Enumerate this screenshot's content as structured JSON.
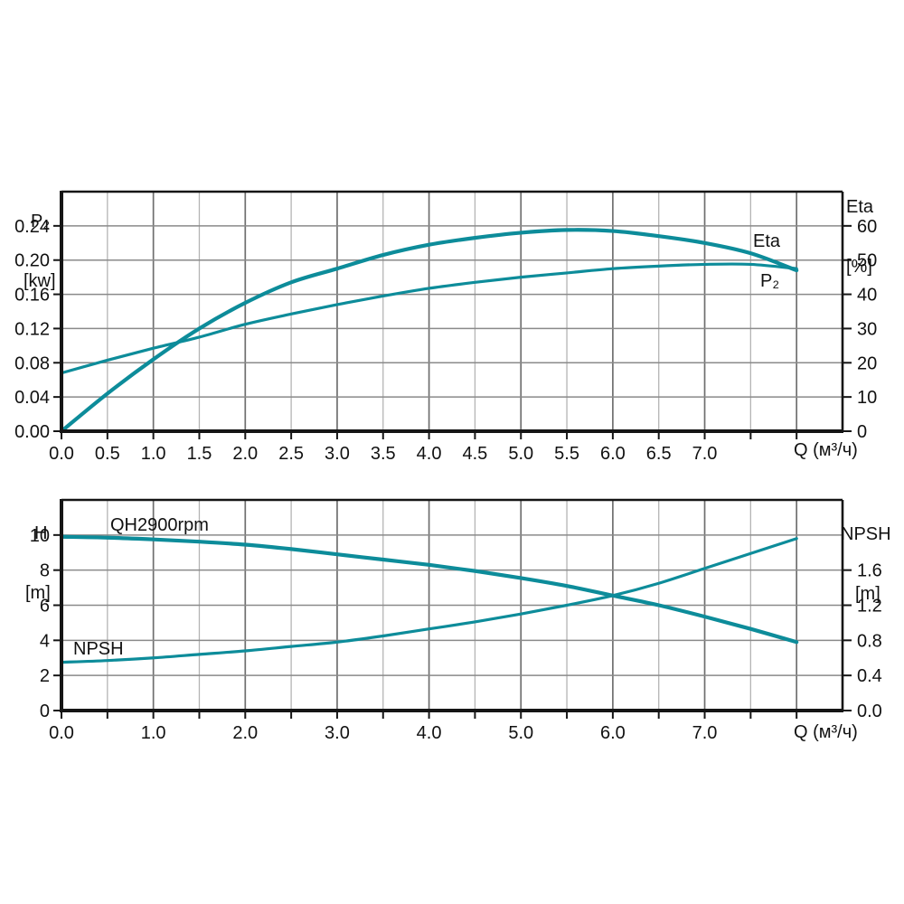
{
  "colors": {
    "background": "#ffffff",
    "curve": "#0d8c9a",
    "grid_minor": "#b4b4b4",
    "grid_major": "#6f6f6f",
    "grid_horizontal": "#8a8a8a",
    "axis": "#151515",
    "text": "#111111"
  },
  "labels": {
    "top_left_axis": {
      "line1": "P₂",
      "line2": "[kw]"
    },
    "top_right_axis": {
      "line1": "Eta",
      "line2": "[%]"
    },
    "top_x_axis": "Q (м³/ч)",
    "bottom_left_axis": {
      "line1": "H",
      "line2": "[m]"
    },
    "bottom_right_axis": {
      "line1": "NPSH",
      "line2": "[m]"
    },
    "bottom_x_axis": "Q (м³/ч)",
    "curve_labels": {
      "eta": "Eta",
      "p2": "P₂",
      "qh": "QH2900rpm",
      "npsh": "NPSH"
    }
  },
  "chart_data": [
    {
      "id": "power-efficiency",
      "type": "line",
      "title": "",
      "x_axis": {
        "label": "Q (м³/ч)",
        "range": [
          0,
          8.5
        ],
        "tick_step": 0.5,
        "grid_minor_step": 0.5,
        "grid_major_step": 1,
        "grid_max": 8,
        "tick_labels": [
          "0.0",
          "0.5",
          "1.0",
          "1.5",
          "2.0",
          "2.5",
          "3.0",
          "3.5",
          "4.0",
          "4.5",
          "5.0",
          "5.5",
          "6.0",
          "6.5",
          "7.0"
        ],
        "label_value_step": 0.5
      },
      "y_left": {
        "label": "P₂ [kw]",
        "range": [
          0,
          0.28
        ],
        "grid_step": 0.04,
        "grid_max": 0.24,
        "tick_labels": [
          "0.00",
          "0.04",
          "0.08",
          "0.12",
          "0.16",
          "0.20",
          "0.24"
        ],
        "tick_value_step": 0.04
      },
      "y_right": {
        "label": "Eta [%]",
        "range": [
          0,
          70
        ],
        "tick_labels": [
          "0",
          "10",
          "20",
          "30",
          "40",
          "50",
          "60"
        ],
        "tick_value_step": 10
      },
      "series": [
        {
          "name": "Eta",
          "axis": "right",
          "x": [
            0,
            0.5,
            1,
            1.5,
            2,
            2.5,
            3,
            3.5,
            4,
            4.5,
            5,
            5.5,
            6,
            6.5,
            7,
            7.5,
            8
          ],
          "values": [
            0,
            11,
            21,
            30,
            37.5,
            43.5,
            47.5,
            51.5,
            54.5,
            56.5,
            58,
            58.8,
            58.5,
            57,
            55,
            52,
            47
          ]
        },
        {
          "name": "P₂",
          "axis": "left",
          "x": [
            0,
            0.5,
            1,
            1.5,
            2,
            2.5,
            3,
            3.5,
            4,
            4.5,
            5,
            5.5,
            6,
            6.5,
            7,
            7.5,
            8
          ],
          "values": [
            0.068,
            0.083,
            0.097,
            0.11,
            0.125,
            0.137,
            0.148,
            0.158,
            0.167,
            0.174,
            0.18,
            0.185,
            0.19,
            0.193,
            0.195,
            0.195,
            0.19
          ]
        }
      ]
    },
    {
      "id": "head-npsh",
      "type": "line",
      "title": "",
      "x_axis": {
        "label": "Q (м³/ч)",
        "range": [
          0,
          8.5
        ],
        "tick_step": 0.5,
        "grid_minor_step": 0.5,
        "grid_major_step": 1,
        "grid_max": 8,
        "tick_labels": [
          "0.0",
          "1.0",
          "2.0",
          "3.0",
          "4.0",
          "5.0",
          "6.0",
          "7.0"
        ],
        "label_value_step": 1
      },
      "y_left": {
        "label": "H [m]",
        "range": [
          0,
          12
        ],
        "grid_step": 2,
        "grid_max": 10,
        "tick_labels": [
          "0",
          "2",
          "4",
          "6",
          "8",
          "10"
        ],
        "tick_value_step": 2
      },
      "y_right": {
        "label": "NPSH [m]",
        "range": [
          0,
          2.4
        ],
        "tick_labels": [
          "0.0",
          "0.4",
          "0.8",
          "1.2",
          "1.6"
        ],
        "tick_value_step": 0.4
      },
      "series": [
        {
          "name": "QH2900rpm",
          "axis": "left",
          "x": [
            0,
            0.5,
            1,
            1.5,
            2,
            2.5,
            3,
            3.5,
            4,
            4.5,
            5,
            5.5,
            6,
            6.5,
            7,
            7.5,
            8
          ],
          "values": [
            9.9,
            9.85,
            9.75,
            9.62,
            9.45,
            9.2,
            8.9,
            8.6,
            8.3,
            7.95,
            7.55,
            7.1,
            6.55,
            6.0,
            5.35,
            4.65,
            3.9
          ]
        },
        {
          "name": "NPSH",
          "axis": "right",
          "x": [
            0,
            0.5,
            1,
            1.5,
            2,
            2.5,
            3,
            3.5,
            4,
            4.5,
            5,
            5.5,
            6,
            6.5,
            7,
            7.5,
            8
          ],
          "values": [
            0.55,
            0.57,
            0.6,
            0.64,
            0.68,
            0.73,
            0.78,
            0.85,
            0.93,
            1.01,
            1.1,
            1.2,
            1.31,
            1.45,
            1.62,
            1.79,
            1.96
          ]
        }
      ]
    }
  ]
}
